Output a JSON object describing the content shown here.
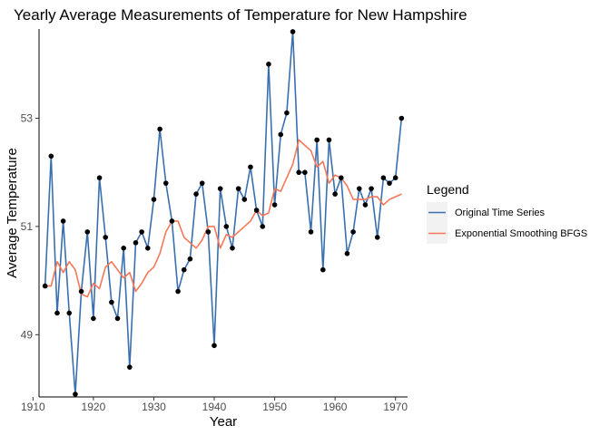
{
  "chart_data": {
    "type": "line",
    "title": "Yearly Average Measurements of Temperature for New Hampshire",
    "xlabel": "Year",
    "ylabel": "Average Temperature",
    "xlim": [
      1911,
      1972
    ],
    "ylim": [
      47.85,
      54.65
    ],
    "xticks": [
      1910,
      1920,
      1930,
      1940,
      1950,
      1960,
      1970
    ],
    "yticks": [
      49,
      51,
      53
    ],
    "grid": false,
    "legend": {
      "title": "Legend",
      "position": "right",
      "entries": [
        "Original Time Series",
        "Exponential Smoothing BFGS"
      ]
    },
    "colors": {
      "original": "#3a6fae",
      "smoothed": "#f67756",
      "points": "#000000"
    },
    "x": [
      1912,
      1913,
      1914,
      1915,
      1916,
      1917,
      1918,
      1919,
      1920,
      1921,
      1922,
      1923,
      1924,
      1925,
      1926,
      1927,
      1928,
      1929,
      1930,
      1931,
      1932,
      1933,
      1934,
      1935,
      1936,
      1937,
      1938,
      1939,
      1940,
      1941,
      1942,
      1943,
      1944,
      1945,
      1946,
      1947,
      1948,
      1949,
      1950,
      1951,
      1952,
      1953,
      1954,
      1955,
      1956,
      1957,
      1958,
      1959,
      1960,
      1961,
      1962,
      1963,
      1964,
      1965,
      1966,
      1967,
      1968,
      1969,
      1970,
      1971
    ],
    "series": [
      {
        "name": "Original Time Series",
        "values": [
          49.9,
          52.3,
          49.4,
          51.1,
          49.4,
          47.9,
          49.8,
          50.9,
          49.3,
          51.9,
          50.8,
          49.6,
          49.3,
          50.6,
          48.4,
          50.7,
          50.9,
          50.6,
          51.5,
          52.8,
          51.8,
          51.1,
          49.8,
          50.2,
          50.4,
          51.6,
          51.8,
          50.9,
          48.8,
          51.7,
          51.0,
          50.6,
          51.7,
          51.5,
          52.1,
          51.3,
          51.0,
          54.0,
          51.4,
          52.7,
          53.1,
          54.6,
          52.0,
          52.0,
          50.9,
          52.6,
          50.2,
          52.6,
          51.6,
          51.9,
          50.5,
          50.9,
          51.7,
          51.4,
          51.7,
          50.8,
          51.9,
          51.8,
          51.9,
          53.0
        ]
      },
      {
        "name": "Exponential Smoothing BFGS",
        "values": [
          49.9,
          49.9,
          50.35,
          50.15,
          50.35,
          50.2,
          49.75,
          49.7,
          49.95,
          49.85,
          50.25,
          50.35,
          50.2,
          50.05,
          50.15,
          49.8,
          49.95,
          50.15,
          50.25,
          50.5,
          50.9,
          51.1,
          51.1,
          50.8,
          50.7,
          50.6,
          50.75,
          51.0,
          51.0,
          50.6,
          50.85,
          50.8,
          50.9,
          51.0,
          51.1,
          51.3,
          51.2,
          51.25,
          51.7,
          51.65,
          51.9,
          52.15,
          52.6,
          52.5,
          52.4,
          52.1,
          52.2,
          51.8,
          51.95,
          51.9,
          51.75,
          51.5,
          51.5,
          51.5,
          51.55,
          51.55,
          51.4,
          51.5,
          51.55,
          51.6
        ]
      }
    ]
  }
}
